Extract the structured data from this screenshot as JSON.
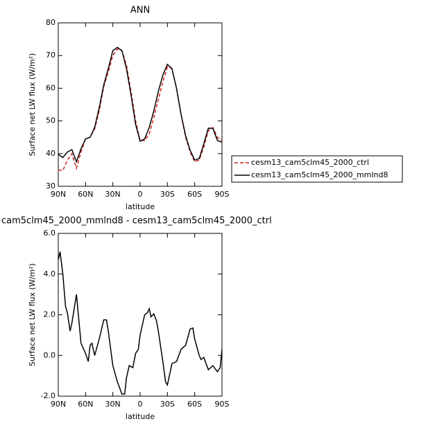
{
  "chart_data": [
    {
      "type": "line",
      "title": "ANN",
      "xlabel": "latitude",
      "ylabel": "Surface net LW flux (W/m²)",
      "x": [
        90,
        85,
        80,
        75,
        70,
        65,
        60,
        55,
        50,
        45,
        40,
        35,
        30,
        25,
        20,
        15,
        10,
        5,
        0,
        -5,
        -10,
        -15,
        -20,
        -25,
        -30,
        -35,
        -40,
        -45,
        -50,
        -55,
        -60,
        -65,
        -70,
        -75,
        -80,
        -85,
        -90
      ],
      "series": [
        {
          "name": "cesm13_cam5clm45_2000_ctrl",
          "color": "#d62020",
          "dash": true,
          "values": [
            35,
            34.8,
            38,
            40,
            35.5,
            40.5,
            44.5,
            45,
            47.5,
            53,
            60.5,
            65,
            70,
            72,
            71.5,
            67,
            59,
            50,
            44,
            44,
            46,
            51,
            56.5,
            62,
            66.5,
            66,
            60,
            52,
            45,
            40.5,
            37.5,
            38,
            42,
            47,
            48,
            45,
            44
          ]
        },
        {
          "name": "cesm13_cam5clm45_2000_mmlnd8",
          "color": "#000000",
          "dash": false,
          "values": [
            39.8,
            38.8,
            40.5,
            41.2,
            37.5,
            41.5,
            44.5,
            45,
            48,
            54,
            61,
            66,
            71.5,
            72.5,
            71.5,
            66,
            58,
            49,
            43.8,
            44.5,
            48,
            53,
            59,
            64,
            67.3,
            66,
            60,
            52,
            45.5,
            41,
            38,
            38.5,
            43,
            47.8,
            47.7,
            44,
            43.5
          ]
        }
      ],
      "xlim": [
        90,
        -90
      ],
      "xticks": [
        {
          "value": 90,
          "label": "90N"
        },
        {
          "value": 60,
          "label": "60N"
        },
        {
          "value": 30,
          "label": "30N"
        },
        0,
        {
          "value": -30,
          "label": "30S"
        },
        {
          "value": -60,
          "label": "60S"
        },
        {
          "value": -90,
          "label": "90S"
        }
      ],
      "ylim": [
        30,
        80
      ],
      "yticks": [
        30,
        40,
        50,
        60,
        70,
        80
      ],
      "legend": "right"
    },
    {
      "type": "line",
      "title": "cam5clm45_2000_mmlnd8 - cesm13_cam5clm45_2000_ctrl",
      "xlabel": "latitude",
      "ylabel": "Surface net LW flux (W/m²)",
      "x": [
        90,
        88,
        85,
        82,
        80,
        77,
        75,
        70,
        65,
        60,
        57,
        55,
        53,
        50,
        45,
        40,
        37,
        35,
        30,
        25,
        20,
        17,
        15,
        12,
        8,
        5,
        2,
        0,
        -5,
        -8,
        -10,
        -12,
        -15,
        -18,
        -20,
        -25,
        -28,
        -30,
        -35,
        -40,
        -45,
        -50,
        -55,
        -58,
        -60,
        -65,
        -67,
        -70,
        -75,
        -80,
        -85,
        -88,
        -90
      ],
      "series": [
        {
          "color": "#000000",
          "dash": false,
          "values": [
            4.7,
            5.1,
            4.0,
            2.4,
            2.1,
            1.2,
            1.6,
            3.0,
            0.6,
            0.1,
            -0.3,
            0.5,
            0.6,
            0,
            0.8,
            1.75,
            1.75,
            1.2,
            -0.5,
            -1.3,
            -1.9,
            -1.9,
            -1.1,
            -0.5,
            -0.6,
            0.1,
            0.3,
            1.0,
            2.0,
            2.1,
            2.3,
            1.9,
            2.05,
            1.7,
            1.2,
            -0.3,
            -1.3,
            -1.45,
            -0.4,
            -0.3,
            0.3,
            0.5,
            1.3,
            1.35,
            0.8,
            0,
            -0.2,
            -0.1,
            -0.7,
            -0.5,
            -0.8,
            -0.6,
            0.3
          ]
        }
      ],
      "xlim": [
        90,
        -90
      ],
      "xticks": [
        {
          "value": 90,
          "label": "90N"
        },
        {
          "value": 60,
          "label": "60N"
        },
        {
          "value": 30,
          "label": "30N"
        },
        0,
        {
          "value": -30,
          "label": "30S"
        },
        {
          "value": -60,
          "label": "60S"
        },
        {
          "value": -90,
          "label": "90S"
        }
      ],
      "ylim": [
        -2,
        6
      ],
      "yticks": [
        {
          "value": -2,
          "label": "-2.0"
        },
        {
          "value": 0,
          "label": "0.0"
        },
        {
          "value": 2,
          "label": "2.0"
        },
        {
          "value": 4,
          "label": "4.0"
        },
        {
          "value": 6,
          "label": "6.0"
        }
      ]
    }
  ]
}
